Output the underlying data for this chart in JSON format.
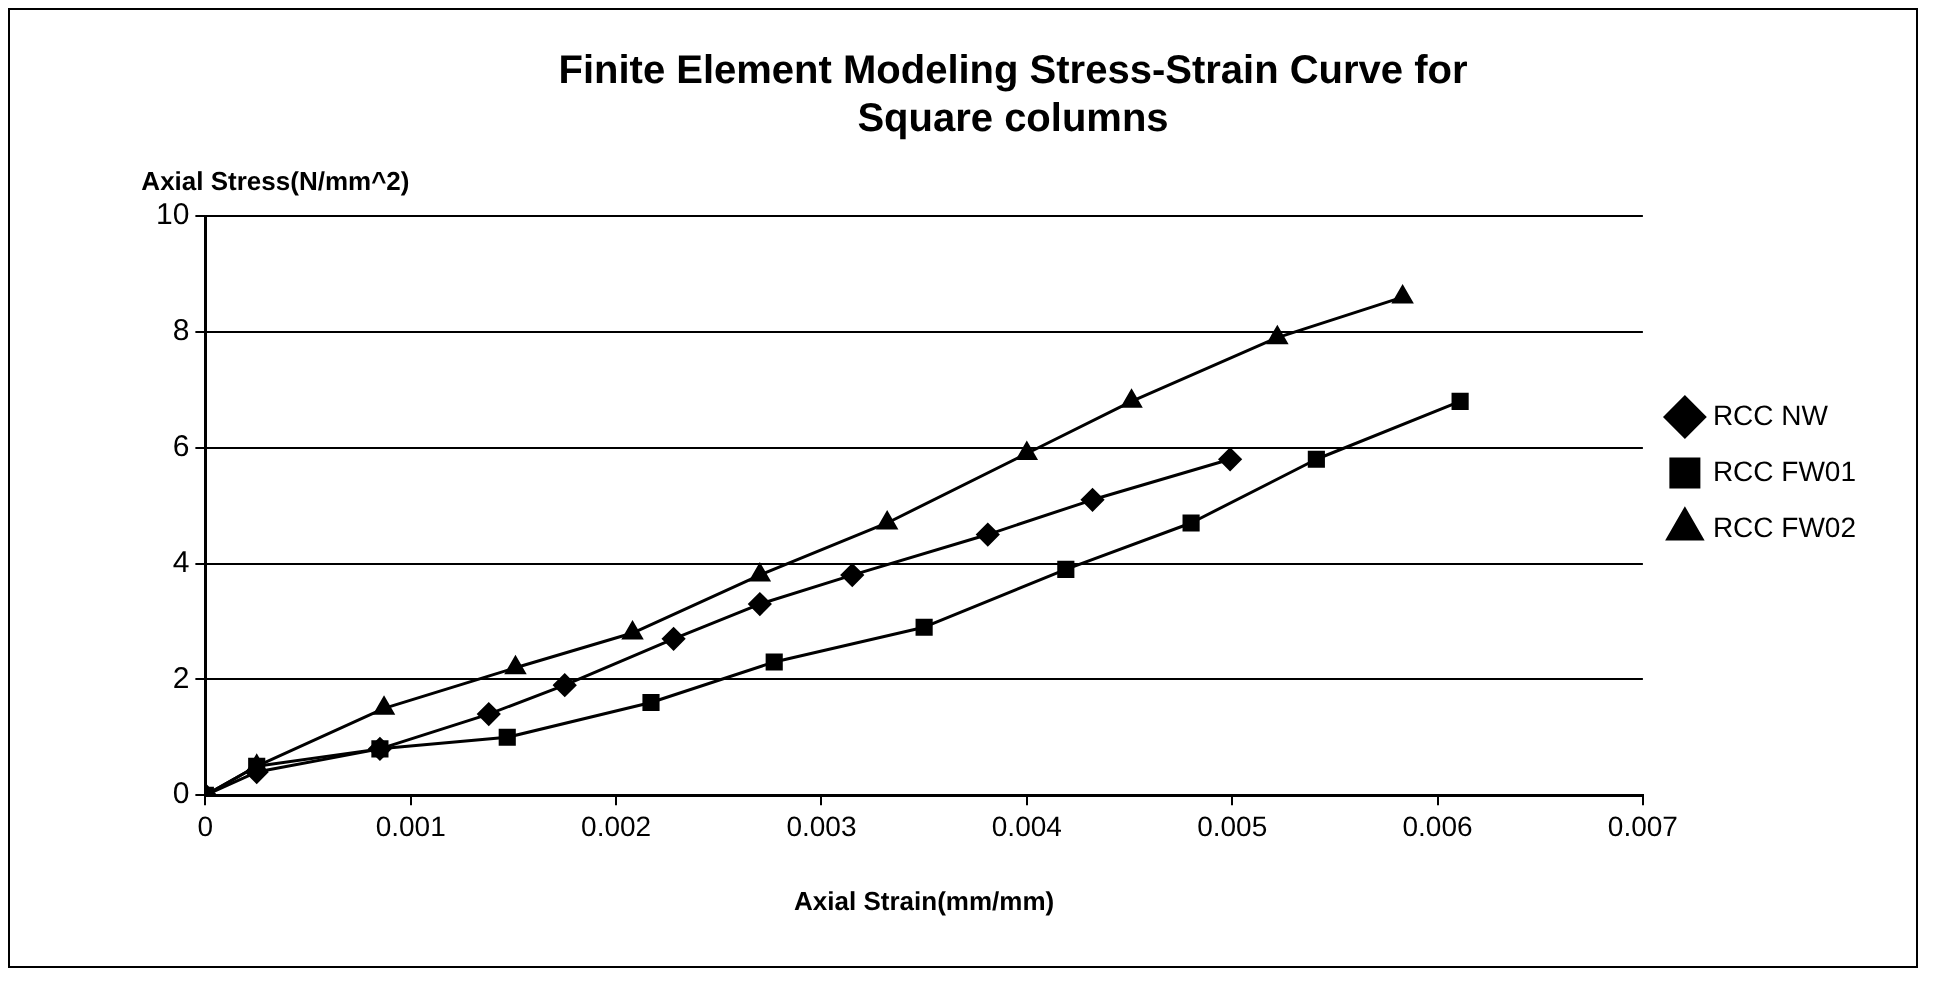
{
  "chart_data": {
    "type": "line",
    "title": [
      "Finite Element Modeling Stress-Strain Curve for",
      "Square columns"
    ],
    "xlabel": "Axial Strain(mm/mm)",
    "ylabel": "Axial Stress(N/mm^2)",
    "xlim": [
      0,
      0.007
    ],
    "xticks": [
      0,
      0.001,
      0.002,
      0.003,
      0.004,
      0.005,
      0.006,
      0.007
    ],
    "ylim": [
      0,
      10
    ],
    "yticks": [
      0,
      2,
      4,
      6,
      8,
      10
    ],
    "grid": "y",
    "legend": "right",
    "line_style": "solid",
    "series": [
      {
        "name": "RCC NW",
        "color": "#000000",
        "marker": "diamond",
        "x": [
          0,
          0.00025,
          0.00085,
          0.00138,
          0.00175,
          0.00228,
          0.0027,
          0.00315,
          0.00381,
          0.00432,
          0.00499
        ],
        "values": [
          0,
          0.4,
          0.8,
          1.4,
          1.9,
          2.7,
          3.3,
          3.8,
          4.5,
          5.1,
          5.8
        ]
      },
      {
        "name": "RCC FW01",
        "color": "#000000",
        "marker": "square",
        "x": [
          0,
          0.00025,
          0.00085,
          0.00147,
          0.00217,
          0.00277,
          0.0035,
          0.00419,
          0.0048,
          0.00541,
          0.00611
        ],
        "values": [
          0,
          0.5,
          0.8,
          1.0,
          1.6,
          2.3,
          2.9,
          3.9,
          4.7,
          5.8,
          6.8
        ]
      },
      {
        "name": "RCC FW02",
        "color": "#000000",
        "marker": "triangle",
        "x": [
          0,
          0.00025,
          0.00087,
          0.00151,
          0.00208,
          0.0027,
          0.00332,
          0.004,
          0.00451,
          0.00522,
          0.00583
        ],
        "values": [
          0,
          0.5,
          1.5,
          2.2,
          2.8,
          3.8,
          4.7,
          5.9,
          6.8,
          7.9,
          8.6
        ]
      }
    ]
  }
}
